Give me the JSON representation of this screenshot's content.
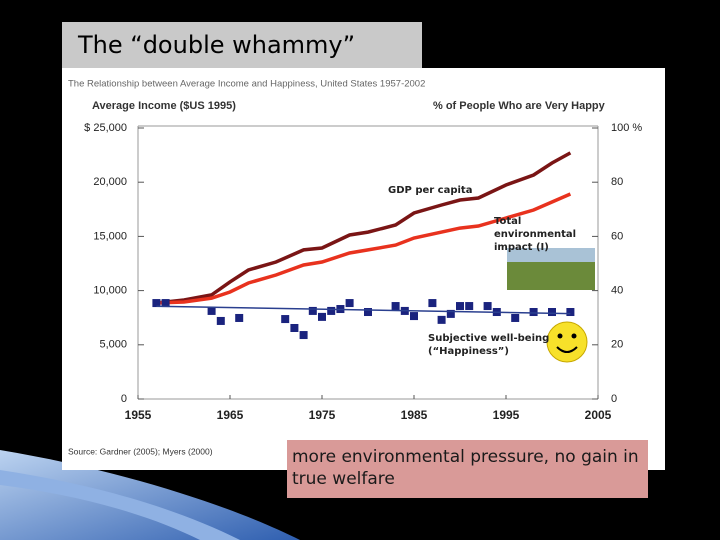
{
  "slide": {
    "title": "The “double whammy”",
    "note": "more environmental pressure, no gain in true welfare"
  },
  "chart_data": {
    "type": "line",
    "title": "The Relationship between Average Income and Happiness, United States 1957-2002",
    "y_label": "Average Income ($US 1995)",
    "y2_label": "% of People Who are Very Happy",
    "source": "Source: Gardner (2005); Myers (2000)",
    "xlim": [
      1955,
      2005
    ],
    "xticks": [
      1955,
      1965,
      1975,
      1985,
      1995,
      2005
    ],
    "ylim": [
      0,
      25000
    ],
    "yticks": [
      0,
      {
        "value": 5000,
        "label": "5,000"
      },
      {
        "value": 10000,
        "label": "10,000"
      },
      {
        "value": 15000,
        "label": "15,000"
      },
      {
        "value": 20000,
        "label": "20,000"
      },
      {
        "value": 25000,
        "label": "$ 25,000"
      }
    ],
    "y2lim": [
      0,
      100
    ],
    "y2ticks": [
      0,
      20,
      40,
      60,
      80,
      {
        "value": 100,
        "label": "100 %"
      }
    ],
    "series": [
      {
        "name": "GDP per capita",
        "color": "#7a1515",
        "x": [
          1957,
          1960,
          1963,
          1965,
          1967,
          1970,
          1973,
          1975,
          1978,
          1980,
          1983,
          1985,
          1988,
          1990,
          1992,
          1995,
          1998,
          2000,
          2002
        ],
        "values": [
          8860,
          9130,
          9600,
          10800,
          11900,
          12640,
          13750,
          13930,
          15130,
          15400,
          16050,
          17160,
          17900,
          18360,
          18540,
          19740,
          20660,
          21770,
          22700
        ]
      },
      {
        "name": "Total environmental impact (I)",
        "color": "#e8321e",
        "x": [
          1957,
          1960,
          1963,
          1965,
          1967,
          1970,
          1973,
          1975,
          1978,
          1980,
          1983,
          1985,
          1988,
          1990,
          1992,
          1995,
          1998,
          2000,
          2002
        ],
        "values": [
          8860,
          8950,
          9300,
          9870,
          10700,
          11440,
          12360,
          12640,
          13470,
          13750,
          14200,
          14850,
          15400,
          15770,
          15960,
          16700,
          17440,
          18170,
          18910
        ]
      },
      {
        "name": "Subjective well-being (“Happiness”)",
        "color": "#1a237e",
        "axis": "y2",
        "marker": "square",
        "x": [
          1957,
          1958,
          1963,
          1964,
          1966,
          1971,
          1972,
          1973,
          1974,
          1975,
          1976,
          1977,
          1978,
          1980,
          1983,
          1984,
          1985,
          1987,
          1988,
          1989,
          1990,
          1991,
          1993,
          1994,
          1996,
          1998,
          2000,
          2002
        ],
        "values": [
          35.4,
          35.4,
          32.5,
          28.8,
          29.9,
          29.5,
          26.2,
          23.6,
          32.5,
          30.3,
          32.5,
          33.2,
          35.4,
          32.1,
          34.3,
          32.5,
          30.6,
          35.4,
          29.2,
          31.4,
          34.3,
          34.3,
          34.3,
          32.1,
          29.9,
          32.1,
          32.1,
          32.1
        ]
      },
      {
        "color": "#2a3f8f",
        "axis": "y2",
        "x": [
          1957,
          2002
        ],
        "values": [
          34.2,
          31.5
        ]
      }
    ]
  }
}
